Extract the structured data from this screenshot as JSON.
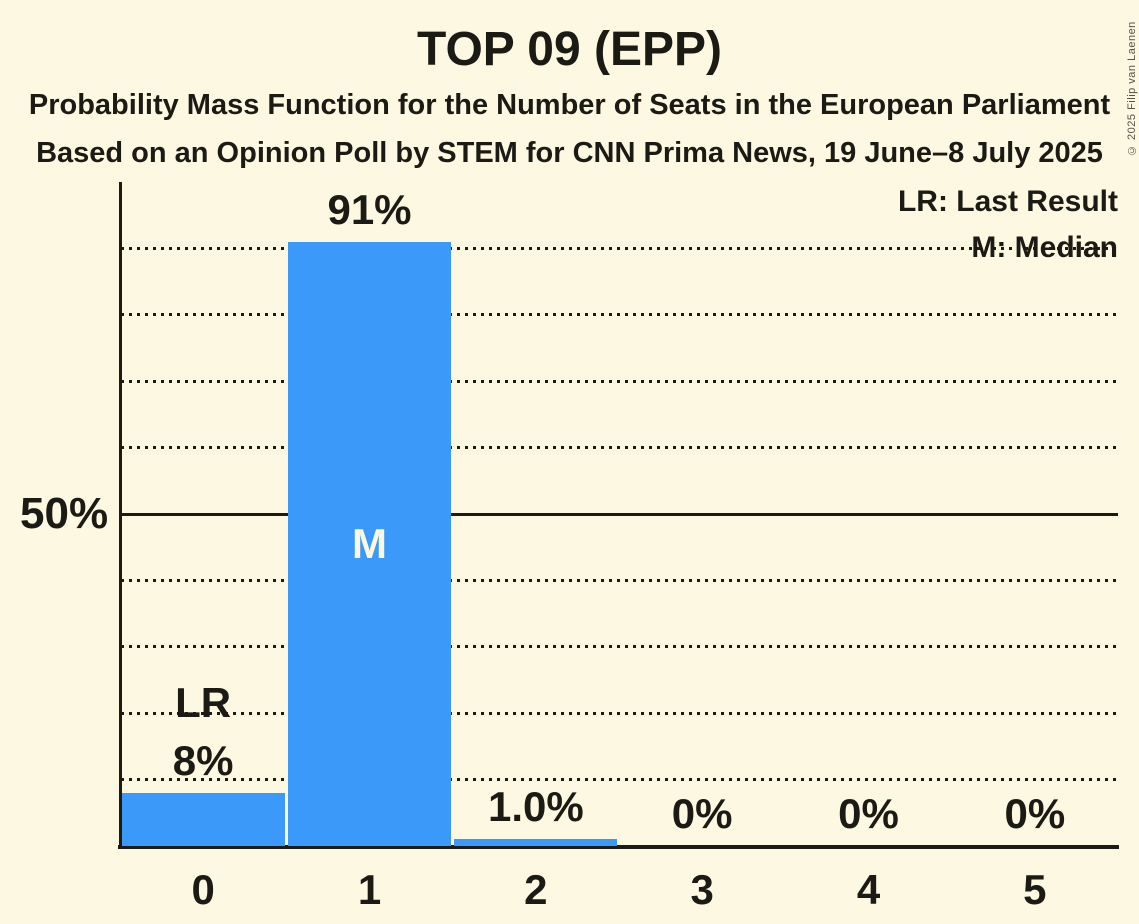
{
  "header": {
    "title": "TOP 09 (EPP)",
    "subtitle1": "Probability Mass Function for the Number of Seats in the European Parliament",
    "subtitle2": "Based on an Opinion Poll by STEM for CNN Prima News, 19 June–8 July 2025"
  },
  "legend": {
    "lr": "LR: Last Result",
    "m": "M: Median"
  },
  "footer": {
    "copyright": "© 2025 Filip van Laenen"
  },
  "colors": {
    "background": "#fcf8e2",
    "bar_fill": "#3b99fa",
    "ink": "#1b1a14"
  },
  "chart_data": {
    "type": "bar",
    "title": "TOP 09 (EPP)",
    "categories": [
      "0",
      "1",
      "2",
      "3",
      "4",
      "5"
    ],
    "values": [
      8,
      91,
      1.0,
      0,
      0,
      0
    ],
    "value_labels": [
      "8%",
      "91%",
      "1.0%",
      "0%",
      "0%",
      "0%"
    ],
    "ylim": [
      0,
      100
    ],
    "ytick": {
      "value": 50,
      "label": "50%"
    },
    "grid": "dotted horizontal lines every 10%, solid line at 50%",
    "gridlines_pct": [
      10,
      20,
      30,
      40,
      60,
      70,
      80,
      90
    ],
    "solid_line_pct": 50,
    "annotations": [
      {
        "category": "0",
        "label": "LR",
        "meaning": "Last Result",
        "placement": "above value label"
      },
      {
        "category": "1",
        "label": "M",
        "meaning": "Median",
        "placement": "inside bar"
      }
    ],
    "legend_position": "top-right",
    "xlabel": "",
    "ylabel": ""
  }
}
